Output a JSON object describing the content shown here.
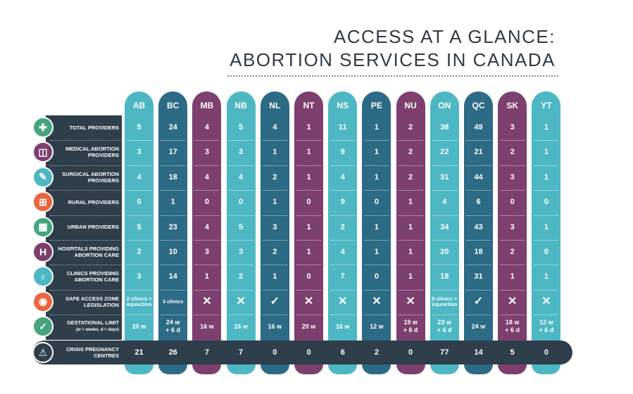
{
  "title": {
    "line1": "ACCESS AT A GLANCE:",
    "line2": "ABORTION SERVICES IN CANADA"
  },
  "colors": {
    "teal": "#4db8c4",
    "navy": "#2c6a85",
    "purple": "#7d3f6d",
    "dark": "#2e3e4a"
  },
  "rows": [
    {
      "label": "TOTAL PROVIDERS",
      "icon": "plus-cross-icon",
      "icon_color": "#45a47d",
      "icon_glyph": "✚"
    },
    {
      "label": "MEDICAL ABORTION PROVIDERS",
      "icon": "pill-pack-icon",
      "icon_color": "#7d3f6d",
      "icon_glyph": "◫"
    },
    {
      "label": "SURGICAL ABORTION PROVIDERS",
      "icon": "syringe-icon",
      "icon_color": "#4db8c4",
      "icon_glyph": "✎"
    },
    {
      "label": "RURAL PROVIDERS",
      "icon": "medical-kit-icon",
      "icon_color": "#e8653f",
      "icon_glyph": "⊞"
    },
    {
      "label": "URBAN PROVIDERS",
      "icon": "building-icon",
      "icon_color": "#45a47d",
      "icon_glyph": "▦"
    },
    {
      "label": "HOSPITALS PROVIDING ABORTION CARE",
      "icon": "hospital-icon",
      "icon_color": "#7d3f6d",
      "icon_glyph": "H"
    },
    {
      "label": "CLINICS PROVIDING ABORTION CARE",
      "icon": "stethoscope-icon",
      "icon_color": "#4db8c4",
      "icon_glyph": "♁"
    },
    {
      "label": "SAFE ACCESS ZONE LEGISLATION",
      "icon": "location-pin-icon",
      "icon_color": "#e8653f",
      "icon_glyph": "◉"
    },
    {
      "label": "GESTATIONAL LIMIT",
      "sublabel": "(w = weeks, d = days)",
      "icon": "clipboard-check-icon",
      "icon_color": "#45a47d",
      "icon_glyph": "✓"
    }
  ],
  "crisis": {
    "label": "CRISIS PREGNANCY CENTRES",
    "icon": "warning-icon",
    "icon_glyph": "⚠"
  },
  "provinces": [
    {
      "code": "AB",
      "color": "#4db8c4",
      "values": [
        "5",
        "3",
        "4",
        "0",
        "5",
        "2",
        "3",
        "2 clinics + injunction",
        "20 w"
      ],
      "crisis": "21"
    },
    {
      "code": "BC",
      "color": "#2c6a85",
      "values": [
        "24",
        "17",
        "18",
        "1",
        "23",
        "10",
        "14",
        "3 clinics",
        "24 w\n+ 6 d"
      ],
      "crisis": "26"
    },
    {
      "code": "MB",
      "color": "#7d3f6d",
      "values": [
        "4",
        "3",
        "4",
        "0",
        "4",
        "3",
        "1",
        "✕",
        "16 w"
      ],
      "crisis": "7"
    },
    {
      "code": "NB",
      "color": "#4db8c4",
      "values": [
        "5",
        "3",
        "4",
        "0",
        "5",
        "3",
        "2",
        "✕",
        "16 w"
      ],
      "crisis": "7"
    },
    {
      "code": "NL",
      "color": "#2c6a85",
      "values": [
        "4",
        "1",
        "2",
        "1",
        "3",
        "2",
        "1",
        "✓",
        "16 w"
      ],
      "crisis": "0"
    },
    {
      "code": "NT",
      "color": "#7d3f6d",
      "values": [
        "1",
        "1",
        "1",
        "0",
        "1",
        "1",
        "0",
        "✕",
        "20 w"
      ],
      "crisis": "0"
    },
    {
      "code": "NS",
      "color": "#4db8c4",
      "values": [
        "11",
        "9",
        "4",
        "9",
        "2",
        "4",
        "7",
        "✕",
        "16 w"
      ],
      "crisis": "6"
    },
    {
      "code": "PE",
      "color": "#2c6a85",
      "values": [
        "1",
        "1",
        "1",
        "0",
        "1",
        "1",
        "0",
        "✕",
        "12 w"
      ],
      "crisis": "2"
    },
    {
      "code": "NU",
      "color": "#7d3f6d",
      "values": [
        "2",
        "2",
        "2",
        "1",
        "1",
        "1",
        "1",
        "✕",
        "19 w\n+ 6 d"
      ],
      "crisis": "0"
    },
    {
      "code": "ON",
      "color": "#4db8c4",
      "values": [
        "38",
        "22",
        "31",
        "4",
        "34",
        "20",
        "18",
        "8 clinics + injunction",
        "23 w\n+ 6 d"
      ],
      "crisis": "77"
    },
    {
      "code": "QC",
      "color": "#2c6a85",
      "values": [
        "49",
        "21",
        "44",
        "6",
        "43",
        "18",
        "31",
        "✓",
        "24 w"
      ],
      "crisis": "14"
    },
    {
      "code": "SK",
      "color": "#7d3f6d",
      "values": [
        "3",
        "2",
        "3",
        "0",
        "3",
        "2",
        "1",
        "✕",
        "18 w\n+ 6 d"
      ],
      "crisis": "5"
    },
    {
      "code": "YT",
      "color": "#4db8c4",
      "values": [
        "1",
        "1",
        "1",
        "0",
        "1",
        "0",
        "1",
        "✕",
        "12 w\n+ 6 d"
      ],
      "crisis": "0"
    }
  ]
}
